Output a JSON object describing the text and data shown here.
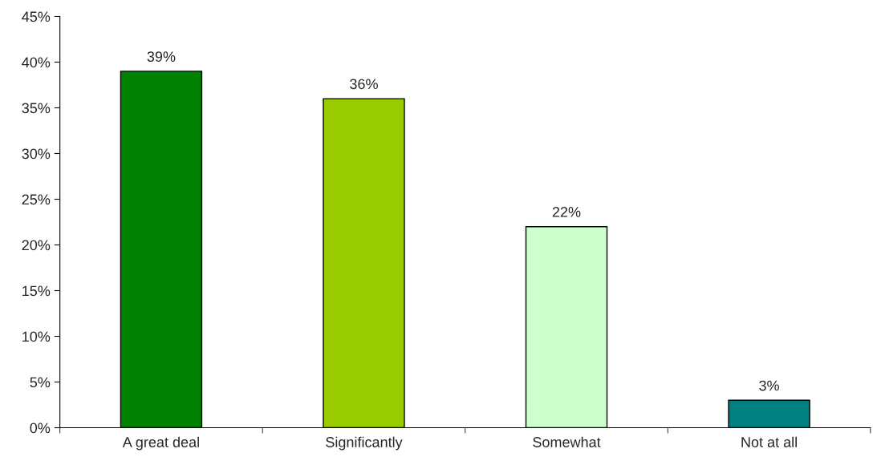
{
  "chart_data": {
    "type": "bar",
    "categories": [
      "A great deal",
      "Significantly",
      "Somewhat",
      "Not at all"
    ],
    "values": [
      39,
      36,
      22,
      3
    ],
    "value_labels": [
      "39%",
      "36%",
      "22%",
      "3%"
    ],
    "colors": [
      "#008000",
      "#99cc00",
      "#ccffcc",
      "#008080"
    ],
    "ylim": [
      0,
      45
    ],
    "yticks": [
      {
        "value": 0,
        "label": "0%"
      },
      {
        "value": 5,
        "label": "5%"
      },
      {
        "value": 10,
        "label": "10%"
      },
      {
        "value": 15,
        "label": "15%"
      },
      {
        "value": 20,
        "label": "20%"
      },
      {
        "value": 25,
        "label": "25%"
      },
      {
        "value": 30,
        "label": "30%"
      },
      {
        "value": 35,
        "label": "35%"
      },
      {
        "value": 40,
        "label": "40%"
      },
      {
        "value": 45,
        "label": "45%"
      }
    ],
    "grid": false,
    "legend": false
  }
}
